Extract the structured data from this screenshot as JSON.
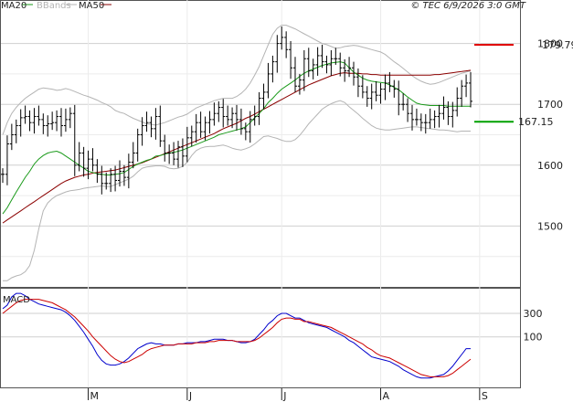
{
  "header": {
    "legend": [
      {
        "label": "MA20",
        "color": "#1a9a1a"
      },
      {
        "label": "BBands",
        "color": "#b4b4b4"
      },
      {
        "label": "MA50",
        "color": "#8b0000"
      }
    ],
    "copyright": "© TEC 6/9/2026 3:0 GMT"
  },
  "macd_label": "MACD",
  "chart_data": [
    {
      "type": "line",
      "subtype": "ohlc-bars",
      "title": "",
      "x_tick_labels": [
        "M",
        "J",
        "J",
        "A",
        "S"
      ],
      "x_tick_index": [
        19,
        41,
        62,
        84,
        106
      ],
      "y_tick_labels": [
        "1800",
        "1700",
        "1600",
        "1500"
      ],
      "y_tick_values": [
        180,
        170,
        160,
        150
      ],
      "ylim": [
        140,
        187
      ],
      "levels": [
        {
          "label": "179.79",
          "value": 179.79,
          "color": "#e00000"
        },
        {
          "label": "167.15",
          "value": 167.15,
          "color": "#00a000"
        }
      ],
      "close": [
        158.5,
        163.5,
        165.0,
        166.5,
        167.8,
        168.0,
        167.0,
        168.0,
        167.5,
        166.5,
        166.8,
        167.0,
        168.0,
        166.5,
        167.5,
        168.5,
        160.0,
        162.0,
        159.5,
        161.0,
        160.0,
        158.5,
        157.0,
        157.0,
        158.5,
        157.5,
        159.0,
        158.0,
        160.5,
        162.0,
        165.0,
        166.5,
        167.0,
        166.0,
        168.0,
        164.0,
        162.0,
        162.0,
        161.0,
        163.0,
        161.5,
        164.5,
        165.5,
        167.0,
        165.5,
        167.0,
        167.5,
        168.5,
        169.5,
        168.0,
        167.5,
        168.5,
        167.5,
        166.0,
        165.5,
        167.5,
        168.0,
        171.0,
        172.0,
        175.0,
        177.0,
        180.0,
        181.0,
        179.0,
        176.0,
        173.0,
        174.0,
        177.5,
        175.5,
        176.5,
        178.0,
        177.0,
        176.5,
        177.5,
        177.5,
        176.0,
        175.5,
        176.0,
        174.5,
        173.0,
        172.0,
        171.0,
        172.0,
        171.5,
        172.5,
        173.5,
        173.0,
        172.5,
        170.0,
        170.0,
        168.5,
        167.5,
        167.5,
        167.0,
        167.0,
        167.5,
        168.0,
        168.5,
        169.5,
        168.0,
        169.0,
        171.0,
        173.0,
        173.5,
        170.5
      ],
      "series": [
        {
          "name": "MA20",
          "color": "#1a9a1a",
          "values": [
            152,
            153,
            154.3,
            155.6,
            156.8,
            158,
            159,
            160.2,
            161,
            161.6,
            162,
            162.2,
            162.3,
            162,
            161.5,
            161,
            160.5,
            160,
            159.5,
            159,
            158.8,
            158.6,
            158.5,
            158.4,
            158.4,
            158.5,
            158.6,
            158.8,
            159.3,
            159.8,
            160.2,
            160.5,
            160.8,
            161,
            161.5,
            161.6,
            161.8,
            162,
            162.1,
            162.3,
            162.5,
            162.8,
            163.1,
            163.4,
            163.7,
            164,
            164.3,
            164.6,
            165,
            165.2,
            165.4,
            165.6,
            165.8,
            166,
            166.3,
            167,
            167.8,
            168.5,
            169.3,
            170.3,
            171,
            171.8,
            172.5,
            173,
            173.5,
            174,
            174.6,
            175.1,
            175.5,
            175.8,
            176.1,
            176.4,
            176.6,
            176.8,
            176.9,
            177,
            176.8,
            176,
            175.3,
            174.8,
            174.3,
            174,
            173.8,
            173.7,
            173.6,
            173.5,
            173.2,
            172.8,
            172.4,
            171.8,
            171.2,
            170.7,
            170.2,
            170,
            169.9,
            169.8,
            169.8,
            169.8,
            169.8,
            169.7,
            169.7,
            169.7,
            169.7,
            169.7,
            169.7
          ]
        },
        {
          "name": "BBands",
          "color": "#b4b4b4",
          "values": [],
          "upper": [
            165,
            167,
            168.5,
            169.5,
            170.3,
            171,
            171.5,
            172,
            172.5,
            172.7,
            172.6,
            172.5,
            172.3,
            172.4,
            172.6,
            172.4,
            172.1,
            171.8,
            171.5,
            171.3,
            171,
            170.7,
            170.3,
            170,
            169.6,
            169,
            168.7,
            168.5,
            168.1,
            167.7,
            167.4,
            167.1,
            166.8,
            166.7,
            166.6,
            166.8,
            167,
            167.3,
            167.6,
            167.9,
            168.1,
            168.4,
            168.9,
            169.4,
            169.7,
            170,
            170.3,
            170.6,
            170.8,
            171,
            171,
            171,
            171.3,
            171.8,
            172.5,
            173.5,
            174.8,
            176.2,
            178,
            179.8,
            181.5,
            182.5,
            183,
            183,
            182.7,
            182.4,
            182,
            181.6,
            181.2,
            180.8,
            180.4,
            180,
            179.8,
            179.5,
            179.2,
            179.3,
            179.5,
            179.6,
            179.7,
            179.6,
            179.4,
            179.2,
            179,
            178.8,
            178.6,
            178.2,
            177.6,
            177,
            176.5,
            175.9,
            175.3,
            174.7,
            174.2,
            173.8,
            173.5,
            173.3,
            173.4,
            173.6,
            173.9,
            174.2,
            174.5,
            174.8,
            175.1,
            175.3,
            175.5
          ],
          "lower": [
            141,
            141,
            141.5,
            141.8,
            142,
            142.5,
            143.5,
            146,
            149.5,
            152.5,
            153.8,
            154.5,
            155,
            155.3,
            155.6,
            155.8,
            155.9,
            156,
            156.2,
            156.3,
            156.4,
            156.5,
            156.6,
            156.5,
            156.5,
            156.8,
            157.1,
            157.4,
            157.7,
            158.2,
            158.9,
            159.5,
            159.7,
            159.8,
            159.9,
            159.9,
            159.8,
            159.5,
            159.4,
            159.5,
            159.8,
            160.5,
            161.6,
            162.4,
            162.8,
            163,
            163.1,
            163.1,
            163.2,
            163.3,
            163.1,
            162.8,
            162.6,
            162.5,
            162.7,
            163,
            163.5,
            164.1,
            164.7,
            164.8,
            164.6,
            164.4,
            164.1,
            163.9,
            163.9,
            164.2,
            164.9,
            165.8,
            166.8,
            167.6,
            168.4,
            169.2,
            169.7,
            170.1,
            170.4,
            170.6,
            170.3,
            169.6,
            169,
            168.4,
            167.7,
            167.1,
            166.5,
            166.1,
            165.9,
            165.8,
            165.8,
            165.9,
            166,
            166.1,
            166.2,
            166.3,
            166.3,
            166.2,
            166.1,
            166,
            165.9,
            165.8,
            165.8,
            165.7,
            165.6,
            165.5,
            165.6,
            165.6,
            165.6
          ]
        },
        {
          "name": "MA50",
          "color": "#8b0000",
          "values": [
            150.5,
            151,
            151.5,
            152,
            152.5,
            153,
            153.5,
            154,
            154.5,
            155,
            155.5,
            156,
            156.5,
            157,
            157.4,
            157.7,
            158,
            158.2,
            158.4,
            158.5,
            158.7,
            158.8,
            158.9,
            159,
            159.1,
            159.2,
            159.4,
            159.6,
            159.8,
            160,
            160.2,
            160.4,
            160.7,
            161,
            161.3,
            161.6,
            161.9,
            162.2,
            162.5,
            162.8,
            163.1,
            163.4,
            163.7,
            164,
            164.3,
            164.6,
            164.9,
            165.2,
            165.6,
            166,
            166.3,
            166.6,
            166.9,
            167.3,
            167.7,
            168,
            168.4,
            168.8,
            169.2,
            169.6,
            170,
            170.4,
            170.8,
            171.2,
            171.6,
            172,
            172.4,
            172.8,
            173.2,
            173.5,
            173.8,
            174.1,
            174.4,
            174.7,
            174.9,
            175.1,
            175.2,
            175.1,
            175.1,
            175.1,
            175,
            175,
            174.9,
            174.9,
            174.8,
            174.8,
            174.8,
            174.8,
            174.8,
            174.8,
            174.8,
            174.8,
            174.8,
            174.8,
            174.8,
            174.8,
            174.9,
            174.9,
            175,
            175.1,
            175.2,
            175.3,
            175.4,
            175.5,
            175.6
          ]
        }
      ]
    },
    {
      "type": "line",
      "title": "",
      "y_tick_labels": [
        "300",
        "100"
      ],
      "y_tick_values": [
        300,
        100
      ],
      "ylim": [
        -330,
        510
      ],
      "series": [
        {
          "name": "MACD",
          "color": "#0000cc",
          "values": [
            340,
            370,
            440,
            470,
            470,
            450,
            420,
            400,
            380,
            370,
            360,
            350,
            340,
            330,
            310,
            280,
            240,
            190,
            140,
            80,
            20,
            -50,
            -100,
            -130,
            -140,
            -140,
            -130,
            -110,
            -80,
            -40,
            0,
            20,
            40,
            50,
            40,
            40,
            30,
            30,
            30,
            40,
            40,
            50,
            50,
            50,
            60,
            60,
            70,
            80,
            80,
            80,
            70,
            70,
            60,
            50,
            50,
            60,
            80,
            120,
            160,
            210,
            240,
            280,
            300,
            300,
            280,
            260,
            260,
            240,
            220,
            210,
            200,
            190,
            180,
            160,
            140,
            120,
            100,
            70,
            50,
            20,
            -10,
            -40,
            -70,
            -80,
            -90,
            -100,
            -110,
            -130,
            -150,
            -180,
            -200,
            -220,
            -240,
            -250,
            -250,
            -250,
            -240,
            -230,
            -220,
            -190,
            -150,
            -100,
            -50,
            0,
            0
          ]
        },
        {
          "name": "Signal",
          "color": "#cc0000",
          "values": [
            300,
            330,
            360,
            390,
            410,
            420,
            420,
            420,
            420,
            410,
            400,
            390,
            370,
            350,
            330,
            300,
            270,
            230,
            190,
            150,
            100,
            60,
            20,
            -20,
            -60,
            -90,
            -110,
            -120,
            -110,
            -90,
            -70,
            -50,
            -20,
            0,
            10,
            20,
            30,
            30,
            30,
            40,
            40,
            40,
            40,
            50,
            50,
            50,
            60,
            60,
            70,
            70,
            70,
            70,
            60,
            60,
            60,
            60,
            70,
            90,
            120,
            150,
            180,
            220,
            250,
            260,
            260,
            250,
            250,
            230,
            230,
            220,
            210,
            200,
            190,
            180,
            160,
            140,
            120,
            100,
            80,
            60,
            40,
            10,
            -10,
            -40,
            -60,
            -70,
            -80,
            -100,
            -120,
            -140,
            -160,
            -180,
            -200,
            -220,
            -230,
            -240,
            -240,
            -240,
            -240,
            -230,
            -210,
            -180,
            -150,
            -120,
            -90
          ]
        }
      ]
    }
  ]
}
